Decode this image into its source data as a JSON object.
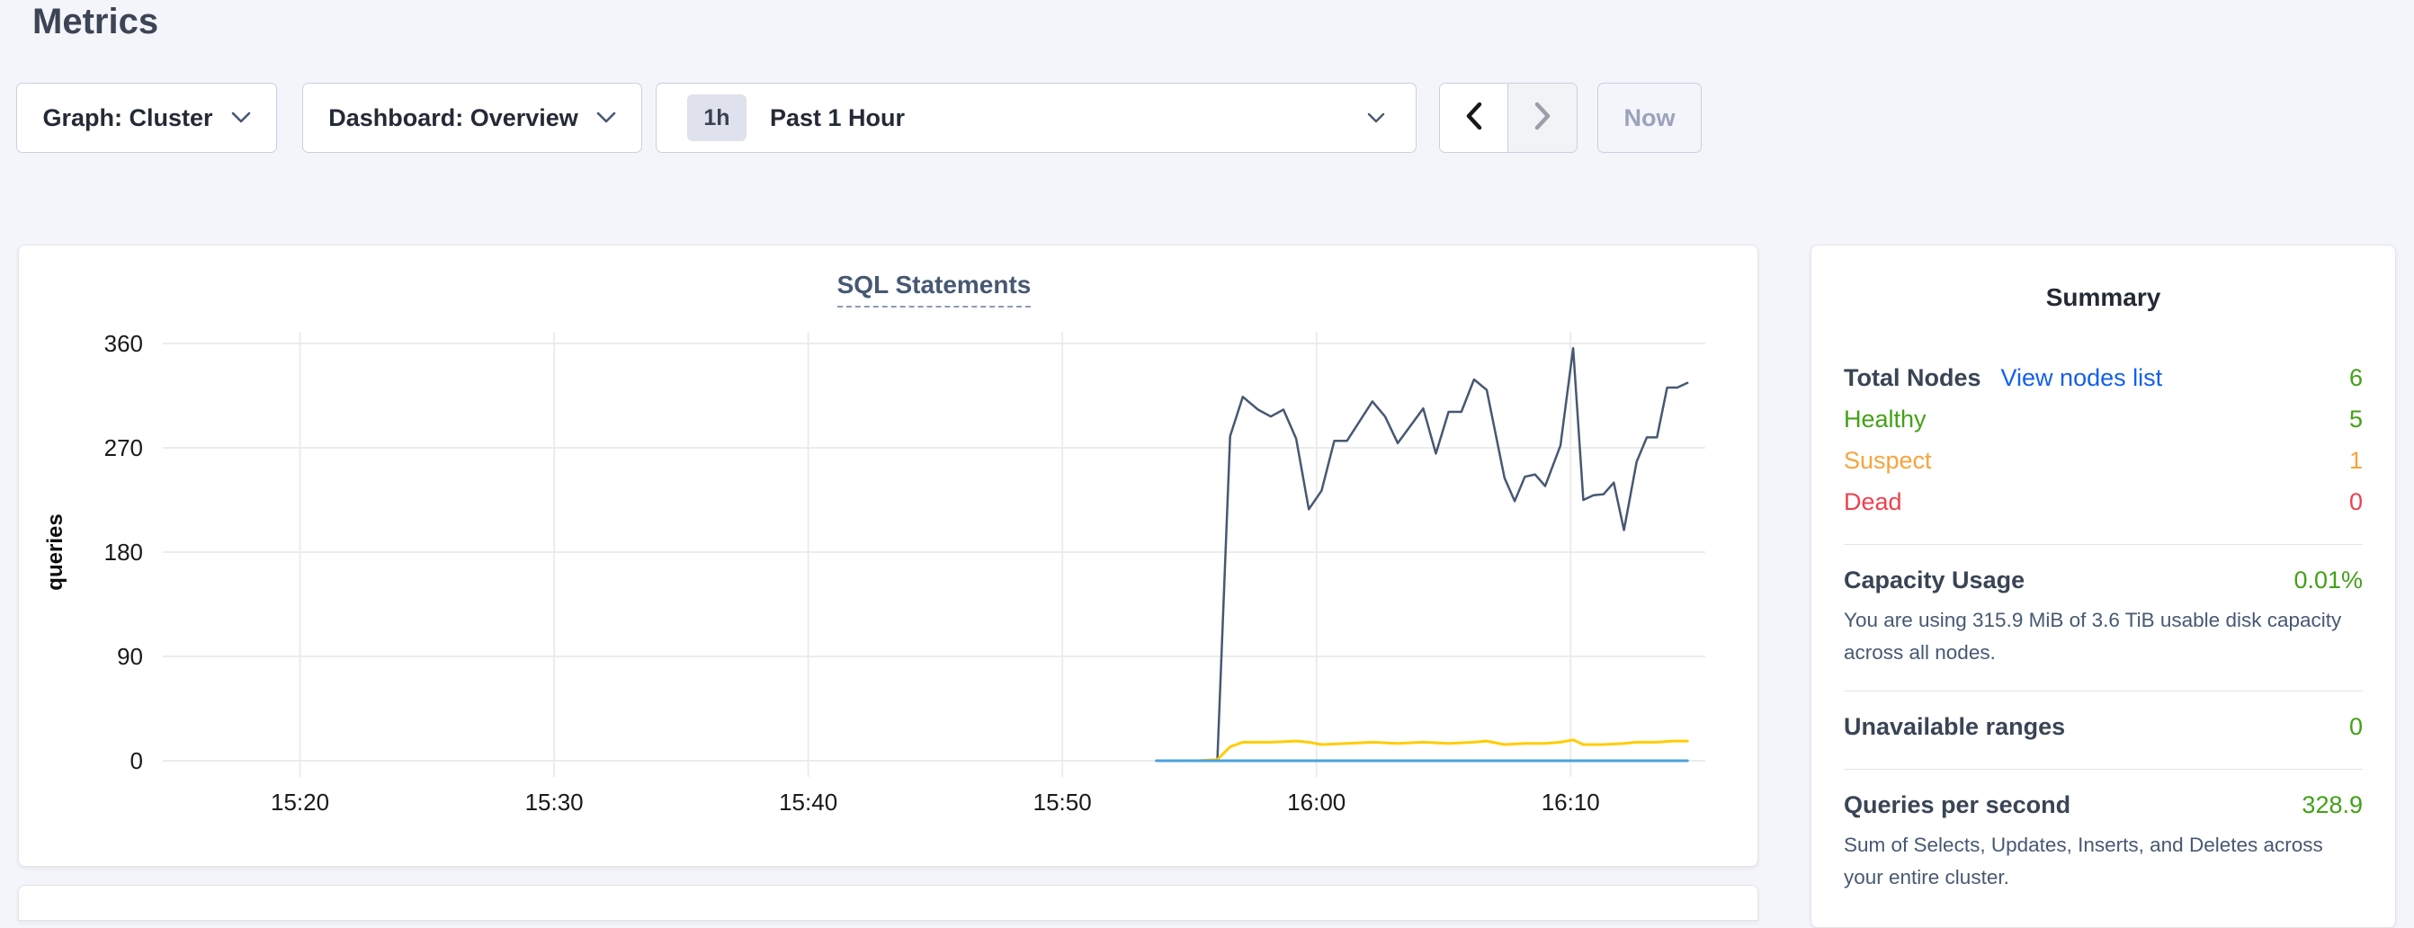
{
  "page": {
    "title": "Metrics"
  },
  "toolbar": {
    "graph_dropdown": "Graph: Cluster",
    "dashboard_dropdown": "Dashboard: Overview",
    "time_badge": "1h",
    "time_label": "Past 1 Hour",
    "now_label": "Now",
    "icons": [
      "chevron-down-icon",
      "chevron-left-icon",
      "chevron-right-icon"
    ]
  },
  "chart_data": {
    "type": "line",
    "title": "SQL Statements",
    "ylabel": "queries",
    "ylim": [
      0,
      360
    ],
    "y_ticks": [
      0,
      90,
      180,
      270,
      360
    ],
    "x_domain_minutes_after_15_00": [
      14.6,
      75.3
    ],
    "x_ticks": [
      {
        "t": 20,
        "label": "15:20"
      },
      {
        "t": 30,
        "label": "15:30"
      },
      {
        "t": 40,
        "label": "15:40"
      },
      {
        "t": 50,
        "label": "15:50"
      },
      {
        "t": 60,
        "label": "16:00"
      },
      {
        "t": 70,
        "label": "16:10"
      }
    ],
    "grid": true,
    "legend": "none",
    "series": [
      {
        "name": "series-dark-slate",
        "color": "#475872",
        "width": 2.5,
        "points": [
          [
            53.7,
            0
          ],
          [
            54.5,
            0
          ],
          [
            55.3,
            0
          ],
          [
            56.1,
            0
          ],
          [
            56.6,
            280
          ],
          [
            57.1,
            314
          ],
          [
            57.7,
            303
          ],
          [
            58.2,
            297
          ],
          [
            58.7,
            303
          ],
          [
            59.2,
            278
          ],
          [
            59.7,
            217
          ],
          [
            60.2,
            233
          ],
          [
            60.7,
            276
          ],
          [
            61.2,
            276
          ],
          [
            62.2,
            310
          ],
          [
            62.7,
            297
          ],
          [
            63.2,
            274
          ],
          [
            64.2,
            304
          ],
          [
            64.7,
            265
          ],
          [
            65.2,
            301
          ],
          [
            65.7,
            301
          ],
          [
            66.2,
            329
          ],
          [
            66.7,
            320
          ],
          [
            67.4,
            244
          ],
          [
            67.8,
            224
          ],
          [
            68.2,
            245
          ],
          [
            68.6,
            247
          ],
          [
            69.0,
            237
          ],
          [
            69.6,
            272
          ],
          [
            70.1,
            356
          ],
          [
            70.5,
            225
          ],
          [
            70.9,
            229
          ],
          [
            71.3,
            230
          ],
          [
            71.7,
            240
          ],
          [
            72.1,
            199
          ],
          [
            72.6,
            258
          ],
          [
            73.0,
            279
          ],
          [
            73.4,
            279
          ],
          [
            73.8,
            322
          ],
          [
            74.2,
            322
          ],
          [
            74.6,
            326
          ]
        ]
      },
      {
        "name": "series-yellow",
        "color": "#ffcd02",
        "width": 3,
        "points": [
          [
            53.7,
            0
          ],
          [
            54.5,
            0
          ],
          [
            55.3,
            0
          ],
          [
            56.1,
            1
          ],
          [
            56.6,
            12
          ],
          [
            57.1,
            16
          ],
          [
            58.2,
            16
          ],
          [
            59.2,
            17
          ],
          [
            59.7,
            16
          ],
          [
            60.2,
            14
          ],
          [
            61.2,
            15
          ],
          [
            62.2,
            16
          ],
          [
            63.2,
            15
          ],
          [
            64.2,
            16
          ],
          [
            65.2,
            15
          ],
          [
            66.2,
            16
          ],
          [
            66.7,
            17
          ],
          [
            67.4,
            14
          ],
          [
            68.2,
            15
          ],
          [
            69.0,
            15
          ],
          [
            69.6,
            16
          ],
          [
            70.1,
            18
          ],
          [
            70.5,
            14
          ],
          [
            71.3,
            14
          ],
          [
            72.1,
            15
          ],
          [
            72.6,
            16
          ],
          [
            73.4,
            16
          ],
          [
            74.0,
            17
          ],
          [
            74.6,
            17
          ]
        ]
      },
      {
        "name": "series-blue",
        "color": "#4aa2de",
        "width": 3,
        "points": [
          [
            53.7,
            0
          ],
          [
            74.6,
            0
          ]
        ]
      }
    ]
  },
  "summary": {
    "title": "Summary",
    "total_nodes_label": "Total Nodes",
    "view_nodes_link": "View nodes list",
    "total_nodes_value": "6",
    "healthy_label": "Healthy",
    "healthy_value": "5",
    "suspect_label": "Suspect",
    "suspect_value": "1",
    "dead_label": "Dead",
    "dead_value": "0",
    "capacity_label": "Capacity Usage",
    "capacity_value": "0.01%",
    "capacity_desc": "You are using 315.9 MiB of 3.6 TiB usable disk capacity across all nodes.",
    "unavailable_label": "Unavailable ranges",
    "unavailable_value": "0",
    "qps_label": "Queries per second",
    "qps_value": "328.9",
    "qps_desc": "Sum of Selects, Updates, Inserts, and Deletes across your entire cluster.",
    "colors": {
      "green": "#43a117",
      "orange": "#f7a43c",
      "red": "#ef404d",
      "link_blue": "#135fef"
    }
  }
}
